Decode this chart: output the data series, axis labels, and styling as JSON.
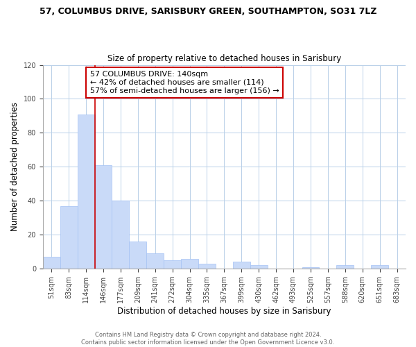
{
  "title": "57, COLUMBUS DRIVE, SARISBURY GREEN, SOUTHAMPTON, SO31 7LZ",
  "subtitle": "Size of property relative to detached houses in Sarisbury",
  "xlabel": "Distribution of detached houses by size in Sarisbury",
  "ylabel": "Number of detached properties",
  "bar_labels": [
    "51sqm",
    "83sqm",
    "114sqm",
    "146sqm",
    "177sqm",
    "209sqm",
    "241sqm",
    "272sqm",
    "304sqm",
    "335sqm",
    "367sqm",
    "399sqm",
    "430sqm",
    "462sqm",
    "493sqm",
    "525sqm",
    "557sqm",
    "588sqm",
    "620sqm",
    "651sqm",
    "683sqm"
  ],
  "bar_values": [
    7,
    37,
    91,
    61,
    40,
    16,
    9,
    5,
    6,
    3,
    0,
    4,
    2,
    0,
    0,
    1,
    0,
    2,
    0,
    2,
    0
  ],
  "bar_color": "#c9daf8",
  "bar_edge_color": "#a4c2f4",
  "vline_color": "#cc0000",
  "vline_x": 3,
  "ylim": [
    0,
    120
  ],
  "yticks": [
    0,
    20,
    40,
    60,
    80,
    100,
    120
  ],
  "annotation_title": "57 COLUMBUS DRIVE: 140sqm",
  "annotation_line1": "← 42% of detached houses are smaller (114)",
  "annotation_line2": "57% of semi-detached houses are larger (156) →",
  "annotation_box_color": "#ffffff",
  "annotation_box_edge": "#cc0000",
  "footer1": "Contains HM Land Registry data © Crown copyright and database right 2024.",
  "footer2": "Contains public sector information licensed under the Open Government Licence v3.0.",
  "figsize": [
    6.0,
    5.0
  ],
  "dpi": 100
}
